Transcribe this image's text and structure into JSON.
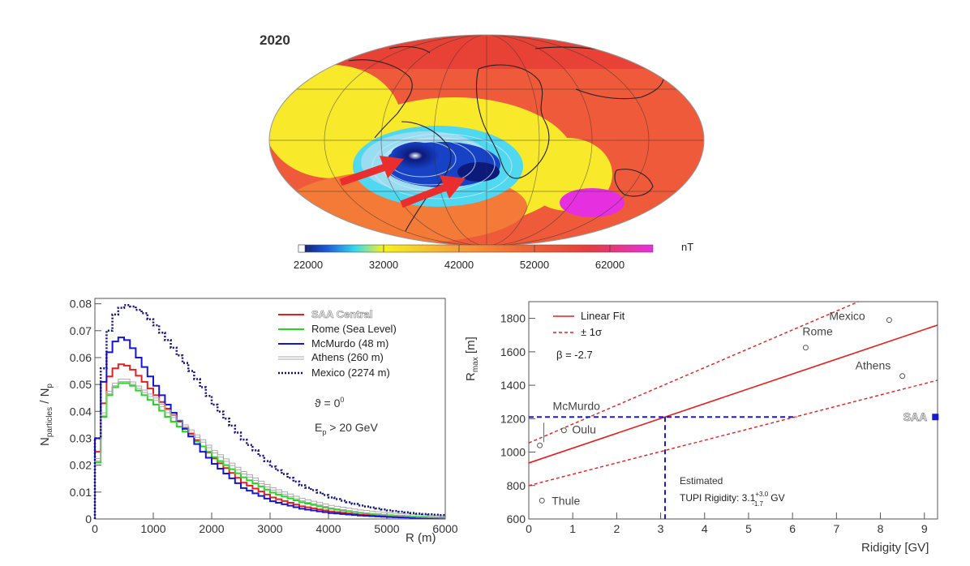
{
  "map": {
    "year": "2020",
    "unit": "nT",
    "colorbar_ticks": [
      "22000",
      "32000",
      "42000",
      "52000",
      "62000"
    ],
    "colorbar_stops": [
      "#101060",
      "#1a5bd6",
      "#37d8f0",
      "#f7f21f",
      "#f6a23a",
      "#ef6b36",
      "#e63c3c",
      "#e630e0"
    ],
    "colors": {
      "red_zone": "#ee4a3a",
      "orange_zone": "#f47a38",
      "yellow_zone": "#f8ea2a",
      "cyan_zone": "#4fd8ef",
      "blue_zone": "#1742c6",
      "arrow": "#ea2e2e"
    }
  },
  "chart_data": [
    {
      "type": "line",
      "title": "",
      "xlabel": "R (m)",
      "ylabel": "N_particles / N_p",
      "ylabel_main": "N",
      "ylabel_sub1": "particles",
      "ylabel_mid": " / N",
      "ylabel_sub2": "p",
      "xlim": [
        0,
        6000
      ],
      "ylim": [
        0,
        0.082
      ],
      "xticks": [
        "0",
        "1000",
        "2000",
        "3000",
        "4000",
        "5000",
        "6000"
      ],
      "yticks": [
        "0",
        "0.01",
        "0.02",
        "0.03",
        "0.04",
        "0.05",
        "0.06",
        "0.07",
        "0.08"
      ],
      "annotations": {
        "theta": "ϑ = 0",
        "theta_sup": "0",
        "energy_pre": "E",
        "energy_sub": "p",
        "energy_post": " > 20 GeV"
      },
      "x": [
        0,
        100,
        200,
        300,
        400,
        500,
        600,
        800,
        1000,
        1200,
        1500,
        1800,
        2000,
        2500,
        3000,
        3500,
        4000,
        4500,
        5000,
        5500,
        6000
      ],
      "series": [
        {
          "name": "SAA Central",
          "color": "#e32020",
          "style": "solid",
          "values": [
            0.025,
            0.043,
            0.053,
            0.056,
            0.0575,
            0.057,
            0.0555,
            0.051,
            0.046,
            0.041,
            0.034,
            0.027,
            0.0225,
            0.0135,
            0.008,
            0.0047,
            0.0028,
            0.0016,
            0.0009,
            0.0005,
            0.0003
          ]
        },
        {
          "name": "Rome (Sea Level)",
          "color": "#1fd81f",
          "style": "solid",
          "values": [
            0.021,
            0.038,
            0.046,
            0.049,
            0.0505,
            0.0505,
            0.0495,
            0.046,
            0.0425,
            0.038,
            0.0325,
            0.027,
            0.023,
            0.0155,
            0.0098,
            0.0062,
            0.0038,
            0.0023,
            0.0014,
            0.0008,
            0.0005
          ]
        },
        {
          "name": "McMurdo (48 m)",
          "color": "#1515d8",
          "style": "solid",
          "values": [
            0.03,
            0.051,
            0.062,
            0.066,
            0.0675,
            0.0665,
            0.0635,
            0.0565,
            0.0495,
            0.0425,
            0.0335,
            0.025,
            0.0205,
            0.0115,
            0.0066,
            0.0038,
            0.0022,
            0.0013,
            0.0007,
            0.0004,
            0.0002
          ]
        },
        {
          "name": "Athens (260 m)",
          "color": "#aaaaaa",
          "style": "double",
          "values": [
            0.022,
            0.039,
            0.047,
            0.05,
            0.0515,
            0.0515,
            0.0505,
            0.0475,
            0.0445,
            0.04,
            0.0345,
            0.029,
            0.025,
            0.0172,
            0.0112,
            0.0072,
            0.0046,
            0.0029,
            0.0018,
            0.0011,
            0.0007
          ]
        },
        {
          "name": "Mexico (2274 m)",
          "color": "#101080",
          "style": "dotted",
          "values": [
            0.03,
            0.056,
            0.07,
            0.076,
            0.0785,
            0.0795,
            0.079,
            0.0765,
            0.072,
            0.0665,
            0.058,
            0.049,
            0.0425,
            0.0295,
            0.0195,
            0.0125,
            0.008,
            0.005,
            0.0032,
            0.002,
            0.0013
          ]
        }
      ]
    },
    {
      "type": "scatter",
      "title": "",
      "xlabel": "Ridigity [GV]",
      "ylabel": "R_max [m]",
      "ylabel_main": "R",
      "ylabel_sub": "max",
      "ylabel_post": " [m]",
      "xlim": [
        0,
        9.3
      ],
      "ylim": [
        600,
        1900
      ],
      "xticks": [
        "0",
        "1",
        "2",
        "3",
        "4",
        "5",
        "6",
        "7",
        "8",
        "9"
      ],
      "yticks": [
        "600",
        "800",
        "1000",
        "1200",
        "1400",
        "1600",
        "1800"
      ],
      "legend": [
        {
          "label": "Linear Fit",
          "color": "#e32020",
          "style": "solid"
        },
        {
          "label": "± 1σ",
          "color": "#e32020",
          "style": "dashed"
        }
      ],
      "beta_label": "β = -2.7",
      "points": [
        {
          "name": "Thule",
          "x": 0.3,
          "y": 710
        },
        {
          "name": "McMurdo",
          "x": 0.25,
          "y": 1040
        },
        {
          "name": "Oulu",
          "x": 0.8,
          "y": 1130
        },
        {
          "name": "Rome",
          "x": 6.3,
          "y": 1625
        },
        {
          "name": "Athens",
          "x": 8.5,
          "y": 1455
        },
        {
          "name": "Mexico",
          "x": 8.2,
          "y": 1790
        }
      ],
      "saa_point": {
        "name": "SAA",
        "x": 9.25,
        "y": 1210
      },
      "fit_line": [
        [
          0,
          935
        ],
        [
          9.3,
          1760
        ]
      ],
      "upper_sigma": [
        [
          0,
          1055
        ],
        [
          7.5,
          1900
        ]
      ],
      "lower_sigma": [
        [
          0,
          800
        ],
        [
          9.3,
          1430
        ]
      ],
      "estimate": {
        "x": 3.1,
        "y": 1210,
        "hline_end_x": 6.1
      },
      "estimate_label": "Estimated",
      "estimate_text_pre": "TUPI Rigidity: 3.1",
      "estimate_sup": "+3.0",
      "estimate_sub": "-1.7",
      "estimate_unit": " GV"
    }
  ]
}
